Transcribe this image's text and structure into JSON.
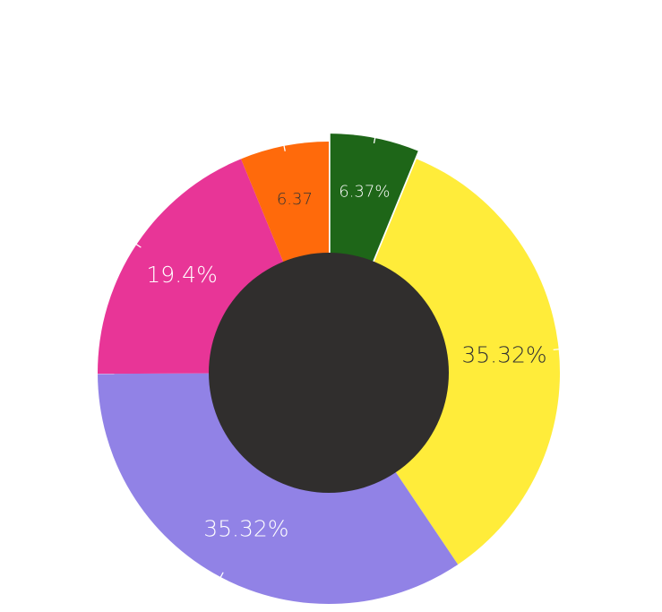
{
  "chart_data": {
    "type": "pie",
    "donut": true,
    "title": "",
    "slices": [
      {
        "value": 6.37,
        "label": "6.37%",
        "color": "#1e6618",
        "label_color": "#ffffff",
        "exploded": true
      },
      {
        "value": 35.32,
        "label": "35.32%",
        "color": "#ffec3a",
        "label_color": "#333333",
        "exploded": false
      },
      {
        "value": 35.32,
        "label": "35.32%",
        "color": "#9182e6",
        "label_color": "#ffffff",
        "exploded": false
      },
      {
        "value": 19.4,
        "label": "19.4%",
        "color": "#e83597",
        "label_color": "#ffffff",
        "exploded": false
      },
      {
        "value": 6.37,
        "label": "6.37",
        "color": "#ff6a0b",
        "label_color": "#333333",
        "exploded": false
      }
    ],
    "hole_color": "#302e2d"
  }
}
